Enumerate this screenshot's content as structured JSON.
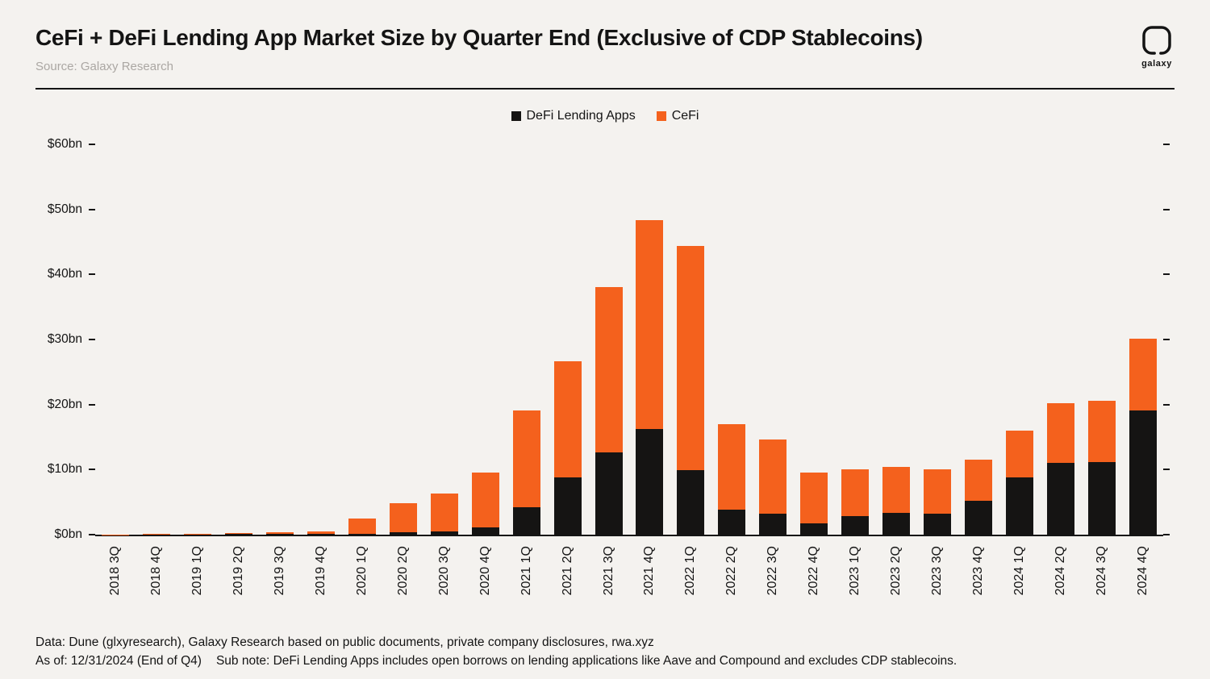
{
  "header": {
    "title": "CeFi + DeFi Lending App Market Size by Quarter End (Exclusive of CDP Stablecoins)",
    "source": "Source: Galaxy Research",
    "logo_text": "galaxy"
  },
  "legend": [
    {
      "label": "DeFi Lending Apps",
      "color": "#151413"
    },
    {
      "label": "CeFi",
      "color": "#F4611D"
    }
  ],
  "chart_data": {
    "type": "bar",
    "stacked": true,
    "title": "CeFi + DeFi Lending App Market Size by Quarter End (Exclusive of CDP Stablecoins)",
    "xlabel": "",
    "ylabel": "",
    "ylim": [
      0,
      60
    ],
    "grid": false,
    "legend_position": "top-center",
    "categories": [
      "2018 3Q",
      "2018 4Q",
      "2019 1Q",
      "2019 2Q",
      "2019 3Q",
      "2019 4Q",
      "2020 1Q",
      "2020 2Q",
      "2020 3Q",
      "2020 4Q",
      "2021 1Q",
      "2021 2Q",
      "2021 3Q",
      "2021 4Q",
      "2022 1Q",
      "2022 2Q",
      "2022 3Q",
      "2022 4Q",
      "2023 1Q",
      "2023 2Q",
      "2023 3Q",
      "2023 4Q",
      "2024 1Q",
      "2024 2Q",
      "2024 3Q",
      "2024 4Q"
    ],
    "series": [
      {
        "name": "DeFi Lending Apps",
        "color": "#151413",
        "values": [
          0.0,
          0.05,
          0.05,
          0.1,
          0.1,
          0.15,
          0.1,
          0.35,
          0.5,
          1.1,
          4.2,
          8.8,
          12.7,
          16.2,
          9.9,
          3.8,
          3.2,
          1.7,
          2.8,
          3.3,
          3.2,
          5.2,
          8.8,
          11.0,
          11.1,
          19.1
        ]
      },
      {
        "name": "CeFi",
        "color": "#F4611D",
        "values": [
          0.05,
          0.1,
          0.1,
          0.2,
          0.25,
          0.35,
          2.4,
          4.45,
          5.8,
          8.4,
          14.9,
          17.9,
          25.3,
          32.1,
          34.5,
          13.2,
          11.4,
          7.8,
          7.2,
          7.1,
          6.9,
          6.3,
          7.2,
          9.2,
          9.5,
          11.0
        ]
      }
    ],
    "y_ticks": [
      {
        "value": 0,
        "label": "$0bn"
      },
      {
        "value": 10,
        "label": "$10bn"
      },
      {
        "value": 20,
        "label": "$20bn"
      },
      {
        "value": 30,
        "label": "$30bn"
      },
      {
        "value": 40,
        "label": "$40bn"
      },
      {
        "value": 50,
        "label": "$50bn"
      },
      {
        "value": 60,
        "label": "$60bn"
      }
    ]
  },
  "footer": {
    "line1": "Data: Dune (glxyresearch), Galaxy Research based on public documents, private company disclosures, rwa.xyz",
    "as_of": "As of: 12/31/2024 (End of Q4)",
    "sub_note": "Sub note: DeFi Lending Apps includes open borrows on lending applications like Aave and Compound and excludes CDP stablecoins."
  },
  "colors": {
    "background": "#F4F2EF",
    "text": "#141414",
    "muted": "#ABA7A3",
    "defi": "#151413",
    "cefi": "#F4611D"
  }
}
